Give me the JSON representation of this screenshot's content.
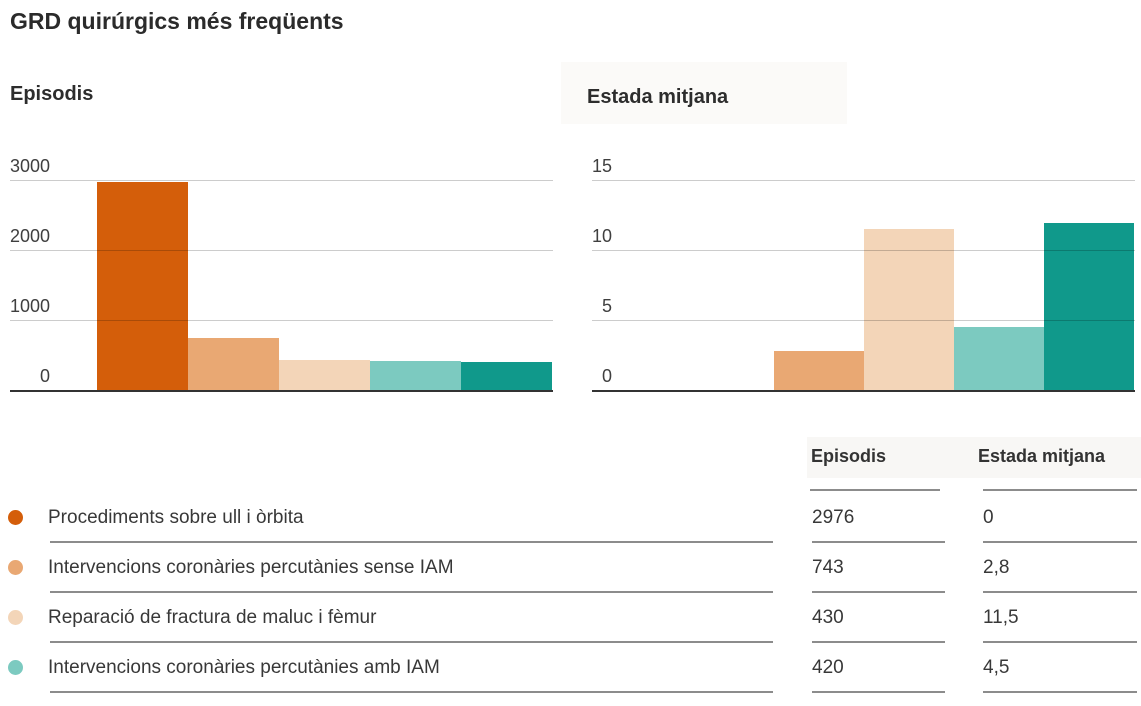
{
  "page": {
    "title": "GRD quirúrgics més freqüents"
  },
  "series_colors": [
    "#d45e0a",
    "#e9a873",
    "#f3d5b8",
    "#7ccac0",
    "#10998b"
  ],
  "chart_data": [
    {
      "type": "bar",
      "title": "Episodis",
      "categories": [
        "Procediments sobre ull i òrbita",
        "Intervencions coronàries percutànies sense IAM",
        "Reparació de fractura de maluc i fèmur",
        "Intervencions coronàries percutànies amb IAM",
        ""
      ],
      "values": [
        2976,
        743,
        430,
        420,
        400
      ],
      "yticks": [
        0,
        1000,
        2000,
        3000
      ],
      "ylim": [
        0,
        3500
      ],
      "grid": true,
      "legend_position": "table-below",
      "estimated_value_indices": [
        4
      ]
    },
    {
      "type": "bar",
      "title": "Estada mitjana",
      "categories": [
        "Procediments sobre ull i òrbita",
        "Intervencions coronàries percutànies sense IAM",
        "Reparació de fractura de maluc i fèmur",
        "Intervencions coronàries percutànies amb IAM",
        ""
      ],
      "values": [
        0,
        2.8,
        11.5,
        4.5,
        11.9
      ],
      "yticks": [
        0,
        5,
        10,
        15
      ],
      "ylim": [
        0,
        17.5
      ],
      "grid": true,
      "legend_position": "table-below",
      "estimated_value_indices": [
        4
      ]
    }
  ],
  "table": {
    "col_headers": [
      "Episodis",
      "Estada mitjana"
    ],
    "rows": [
      {
        "label": "Procediments sobre ull i òrbita",
        "episodis": "2976",
        "estada": "0"
      },
      {
        "label": "Intervencions coronàries percutànies sense IAM",
        "episodis": "743",
        "estada": "2,8"
      },
      {
        "label": "Reparació de fractura de maluc i fèmur",
        "episodis": "430",
        "estada": "11,5"
      },
      {
        "label": "Intervencions coronàries percutànies amb IAM",
        "episodis": "420",
        "estada": "4,5"
      }
    ]
  }
}
